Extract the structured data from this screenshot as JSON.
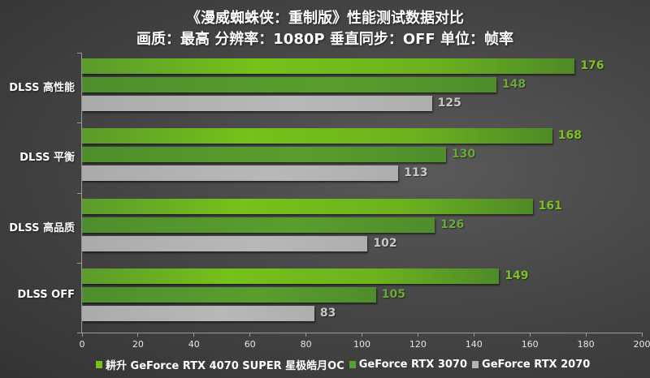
{
  "title": {
    "line1": "《漫威蜘蛛侠：重制版》性能测试数据对比",
    "line2": "画质：最高 分辨率：1080P 垂直同步：OFF 单位：帧率"
  },
  "colors": {
    "series0": "#76c11a",
    "series1": "#5a9e2e",
    "series2": "#b4b4b4",
    "background": "#474747"
  },
  "legend": [
    {
      "label": "耕升 GeForce RTX 4070 SUPER 星极皓月OC",
      "color": "#76c11a"
    },
    {
      "label": "GeForce RTX 3070",
      "color": "#5a9e2e"
    },
    {
      "label": "GeForce RTX 2070",
      "color": "#b4b4b4"
    }
  ],
  "chart_data": {
    "type": "bar",
    "orientation": "horizontal",
    "title": "《漫威蜘蛛侠：重制版》性能测试数据对比",
    "subtitle": "画质：最高 分辨率：1080P 垂直同步：OFF 单位：帧率",
    "categories": [
      "DLSS 高性能",
      "DLSS 平衡",
      "DLSS 高品质",
      "DLSS OFF"
    ],
    "series": [
      {
        "name": "耕升 GeForce RTX 4070 SUPER 星极皓月OC",
        "values": [
          176,
          168,
          161,
          149
        ]
      },
      {
        "name": "GeForce RTX 3070",
        "values": [
          148,
          130,
          126,
          105
        ]
      },
      {
        "name": "GeForce RTX 2070",
        "values": [
          125,
          113,
          102,
          83
        ]
      }
    ],
    "xlabel": "",
    "ylabel": "",
    "xlim": [
      0,
      200
    ],
    "xticks": [
      0,
      20,
      40,
      60,
      80,
      100,
      120,
      140,
      160,
      180,
      200
    ],
    "grid": false,
    "legend_position": "bottom",
    "data_labels": true
  }
}
